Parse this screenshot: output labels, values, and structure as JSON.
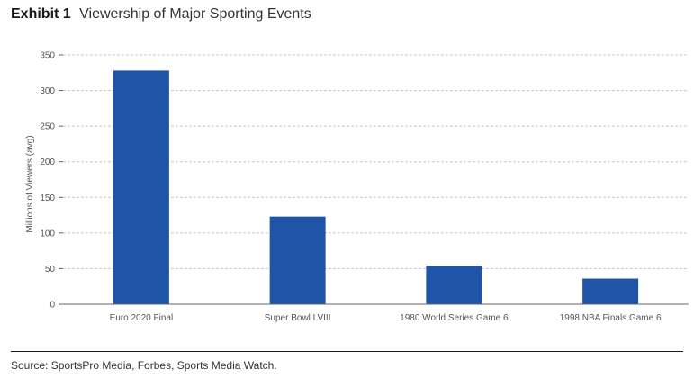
{
  "exhibit": {
    "label": "Exhibit 1",
    "title": "Viewership of Major Sporting Events"
  },
  "source": "Source: SportsPro Media, Forbes, Sports Media Watch.",
  "colors": {
    "bar": "#1f54a6",
    "grid": "#c8c8c8",
    "axis": "#666666",
    "text": "#555555"
  },
  "chart_data": {
    "type": "bar",
    "categories": [
      "Euro 2020 Final",
      "Super Bowl LVIII",
      "1980 World Series Game 6",
      "1998 NBA Finals Game 6"
    ],
    "values": [
      328,
      123,
      54,
      36
    ],
    "ylabel": "Millions of Viewers (avg)",
    "xlabel": "",
    "ylim": [
      0,
      350
    ],
    "yticks": [
      0,
      50,
      100,
      150,
      200,
      250,
      300,
      350
    ],
    "grid": true,
    "legend": "none"
  }
}
